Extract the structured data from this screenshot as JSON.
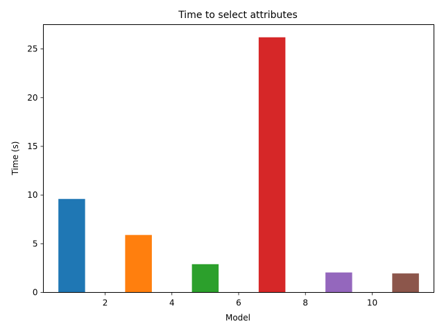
{
  "chart_data": {
    "type": "bar",
    "title": "Time to select attributes",
    "xlabel": "Model",
    "ylabel": "Time (s)",
    "x": [
      1,
      3,
      5,
      7,
      9,
      11
    ],
    "values": [
      9.6,
      5.9,
      2.9,
      26.2,
      2.05,
      1.95
    ],
    "bar_width": 0.8,
    "colors": [
      "#1f77b4",
      "#ff7f0e",
      "#2ca02c",
      "#d62728",
      "#9467bd",
      "#8c564b"
    ],
    "xlim": [
      0.15,
      11.85
    ],
    "ylim": [
      0,
      27.5
    ],
    "xticks": [
      2,
      4,
      6,
      8,
      10
    ],
    "yticks": [
      0,
      5,
      10,
      15,
      20,
      25
    ],
    "grid": false,
    "legend": "none"
  }
}
